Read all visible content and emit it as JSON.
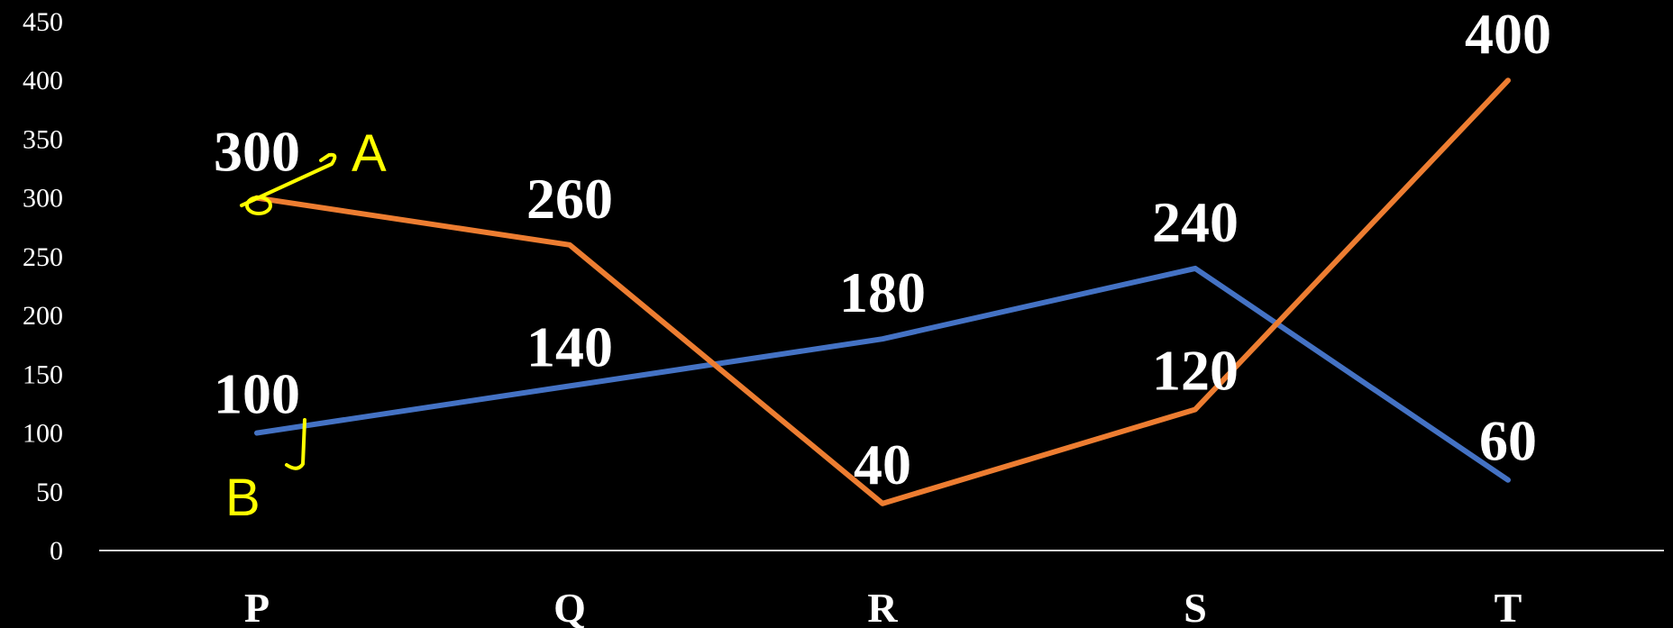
{
  "chart_data": {
    "type": "line",
    "categories": [
      "P",
      "Q",
      "R",
      "S",
      "T"
    ],
    "series": [
      {
        "name": "A",
        "values": [
          300,
          260,
          40,
          120,
          400
        ],
        "color": "#ED7D31"
      },
      {
        "name": "B",
        "values": [
          100,
          140,
          180,
          240,
          60
        ],
        "color": "#4472C4"
      }
    ],
    "data_labels": {
      "A": [
        "300",
        "260",
        "40",
        "120",
        "400"
      ],
      "B": [
        "100",
        "140",
        "180",
        "240",
        "60"
      ]
    },
    "yticks": [
      "0",
      "50",
      "100",
      "150",
      "200",
      "250",
      "300",
      "350",
      "400",
      "450"
    ],
    "ylim": [
      0,
      450
    ],
    "grid": false,
    "background": "#000000",
    "annotations": {
      "handwritten_labels": [
        "A",
        "B"
      ],
      "annotation_color": "#FFFF00"
    }
  }
}
